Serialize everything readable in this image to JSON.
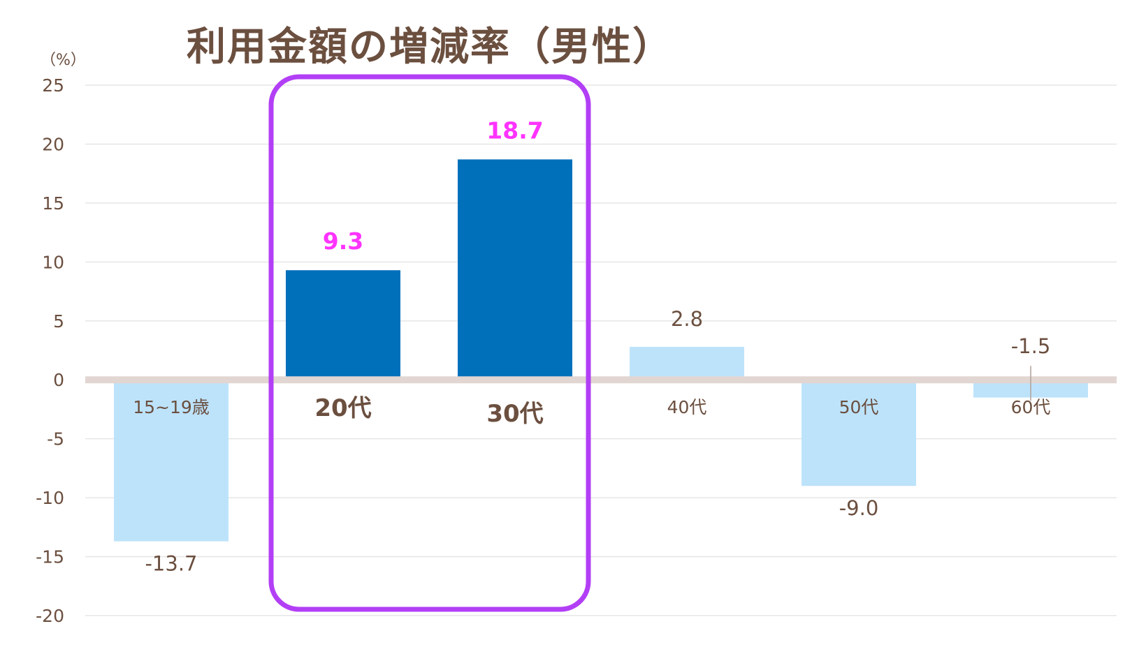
{
  "chart_data": {
    "type": "bar",
    "title": "利用金額の増減率（男性）",
    "ylabel": "（%）",
    "xlabel": "",
    "ylim": [
      -20,
      25
    ],
    "yticks": [
      25,
      20,
      15,
      10,
      5,
      0,
      -5,
      -10,
      -15,
      -20
    ],
    "categories": [
      "15~19歳",
      "20代",
      "30代",
      "40代",
      "50代",
      "60代"
    ],
    "values": [
      -13.7,
      9.3,
      18.7,
      2.8,
      -9.0,
      -1.5
    ],
    "value_labels": [
      "-13.7",
      "9.3",
      "18.7",
      "2.8",
      "-9.0",
      "-1.5"
    ],
    "highlighted": [
      false,
      true,
      true,
      false,
      false,
      false
    ],
    "grid": true,
    "colors": {
      "bar": "#bde3fb",
      "bar_highlight": "#0070bb",
      "highlight_label": "#ff33ff",
      "highlight_box": "#b23ff5",
      "text": "#6b4f3f",
      "zero_line": "#e2d6d3",
      "grid": "#e6e6e6"
    }
  }
}
